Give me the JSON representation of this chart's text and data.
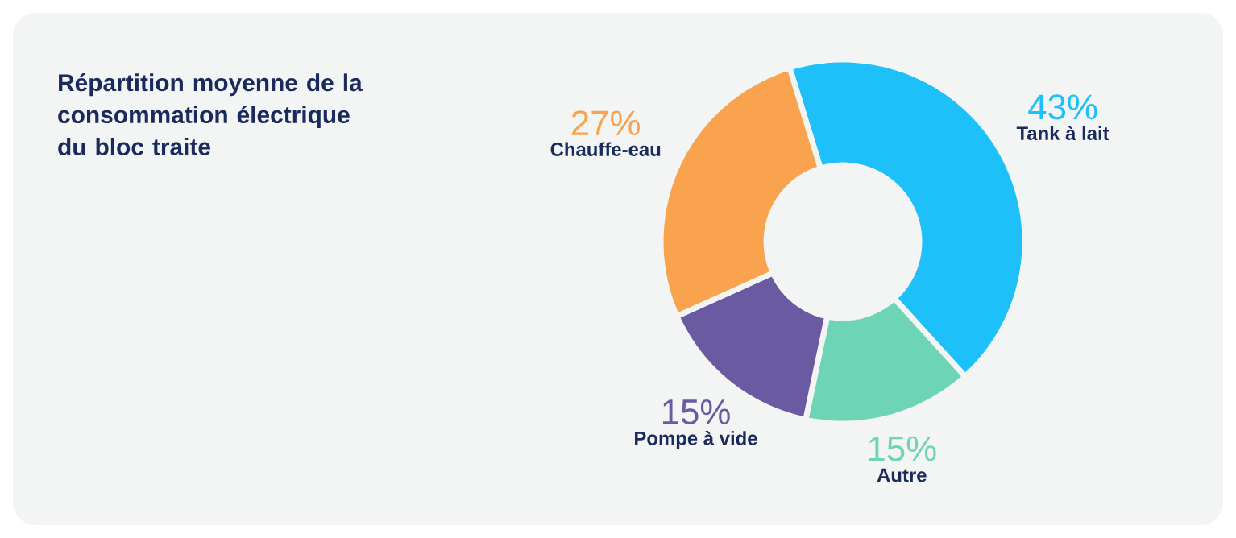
{
  "chart_data": {
    "type": "donut",
    "title": "Répartition moyenne de la consommation électrique du bloc traite",
    "categories": [
      "Tank à lait",
      "Autre",
      "Pompe à vide",
      "Chauffe-eau"
    ],
    "values": [
      43,
      15,
      15,
      27
    ],
    "colors": [
      "#1dc0f8",
      "#6dd5b5",
      "#6a5aa2",
      "#f9a34f"
    ],
    "value_labels": [
      "43%",
      "15%",
      "15%",
      "27%"
    ]
  }
}
